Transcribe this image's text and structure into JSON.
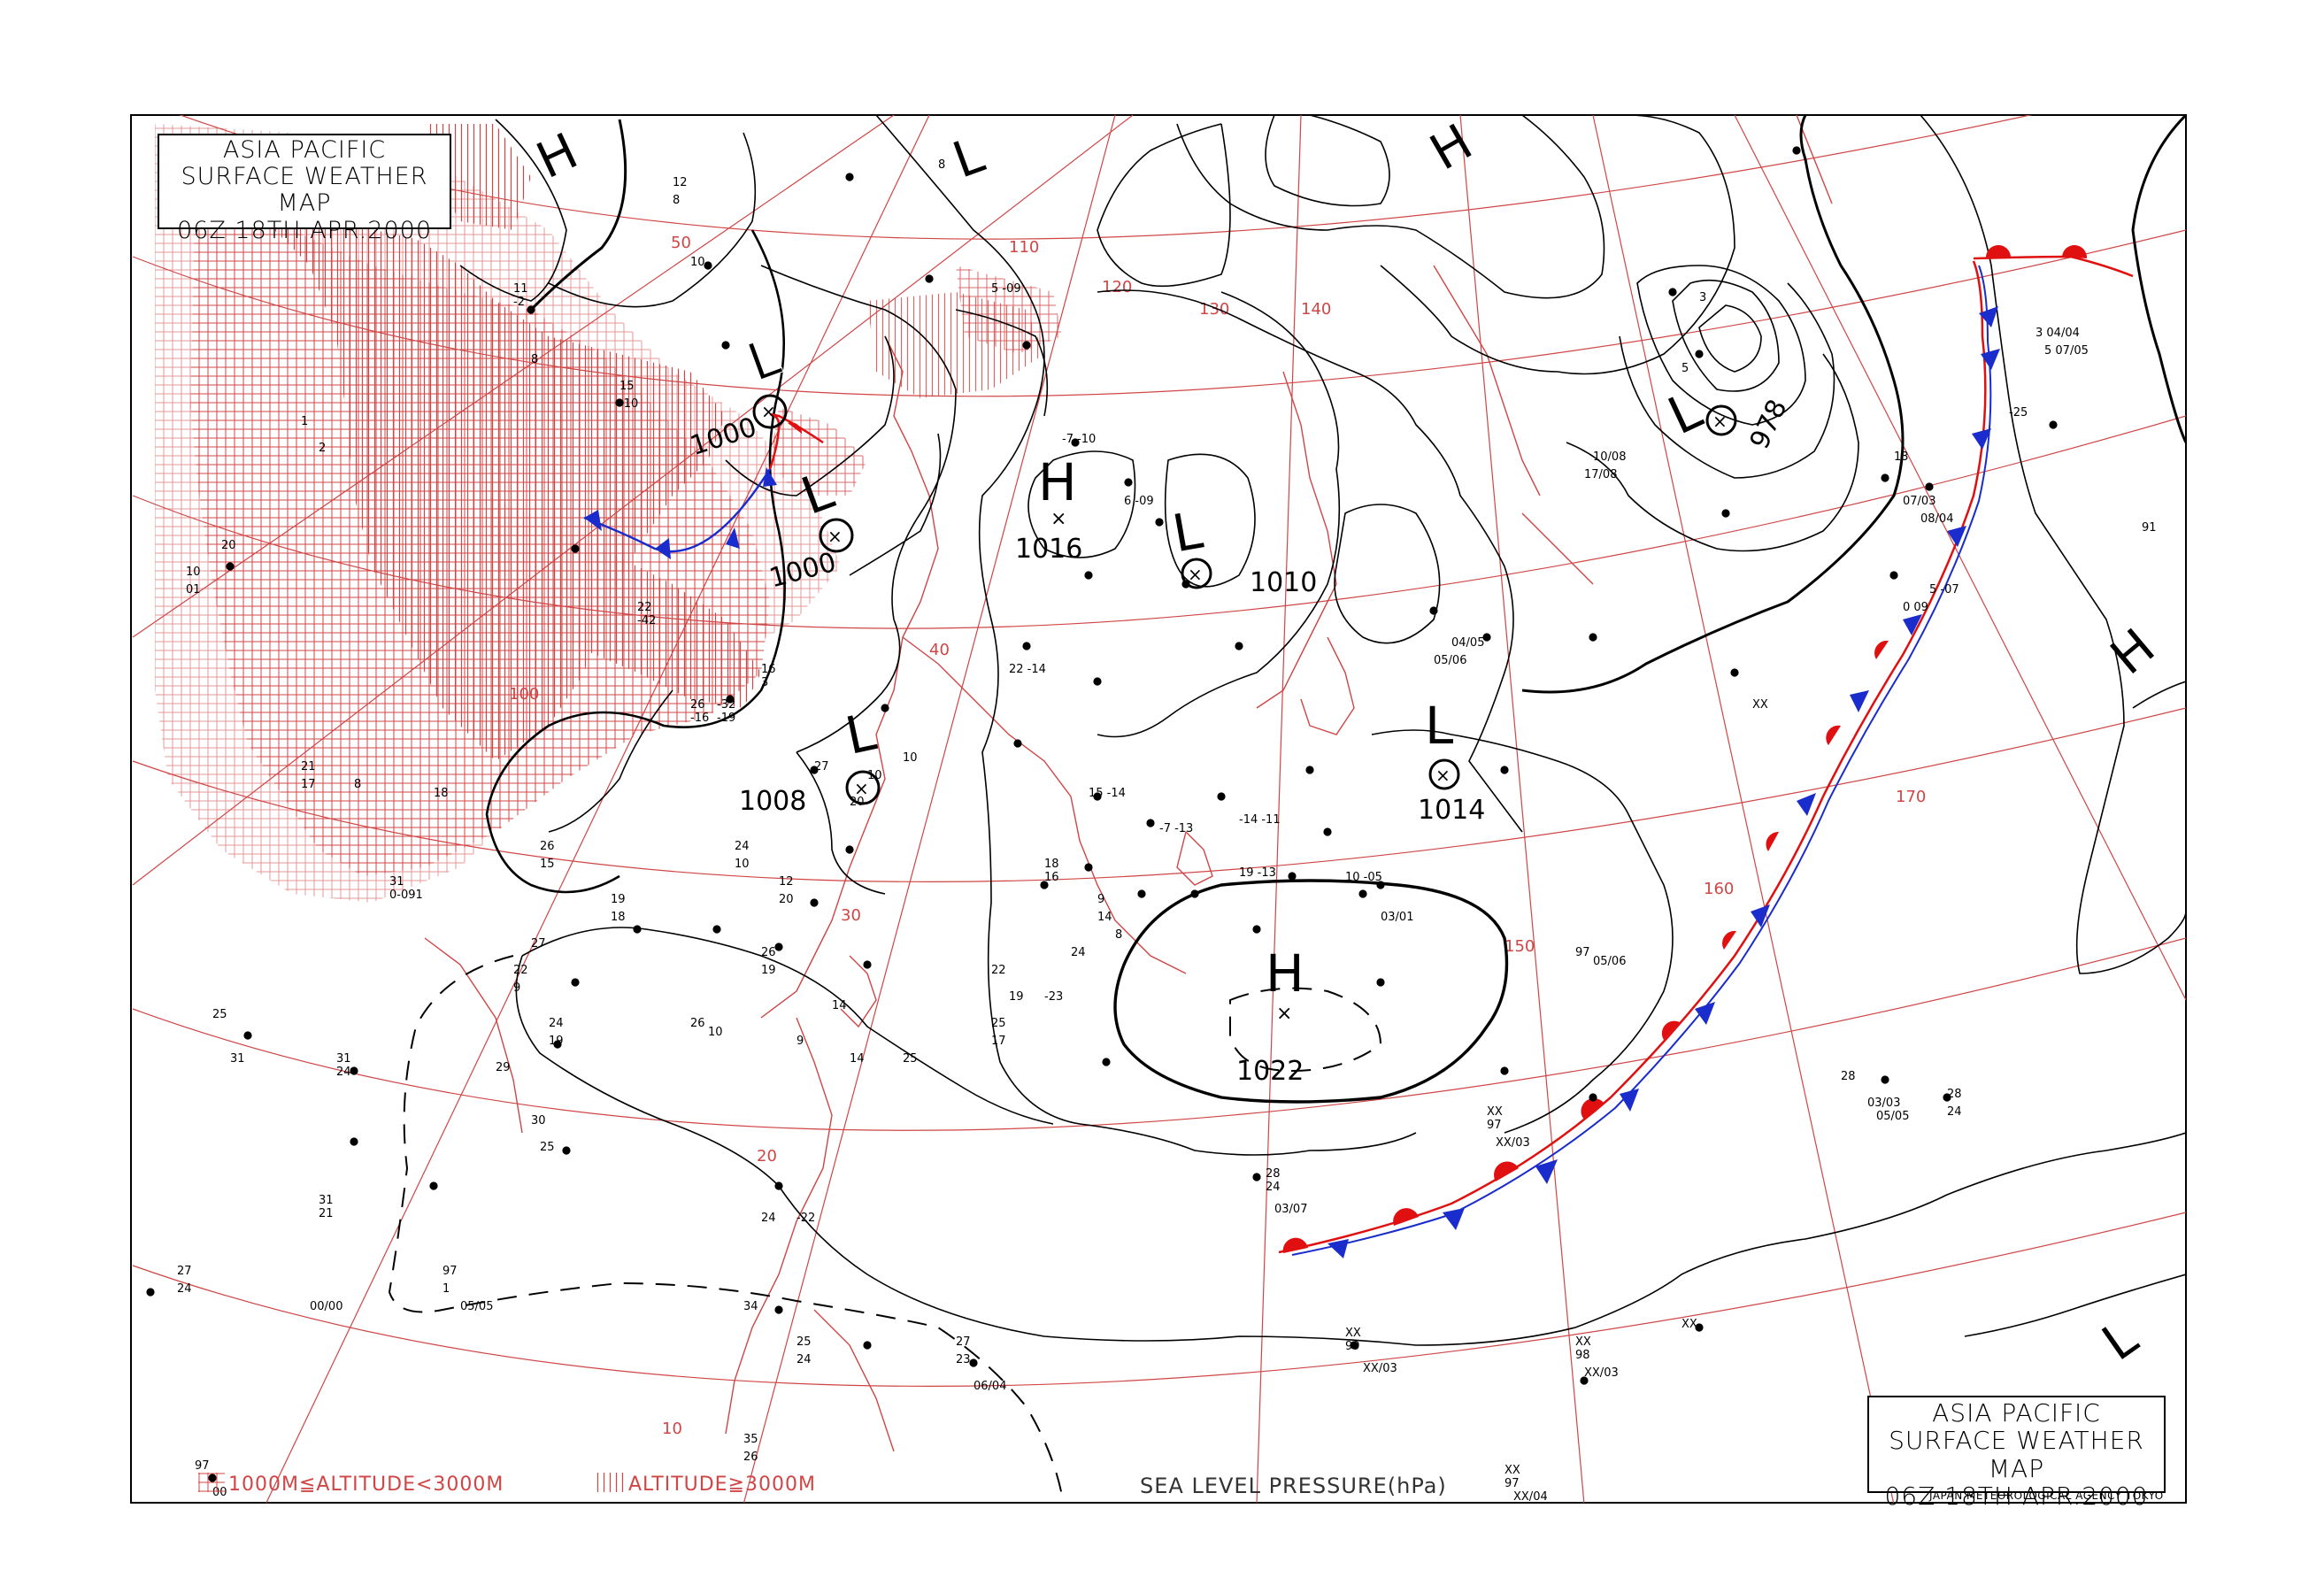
{
  "title": {
    "line1": "ASIA PACIFIC",
    "line2": "SURFACE WEATHER MAP",
    "line3": "06Z 18TH APR.2000"
  },
  "legend": {
    "mid_altitude": "1000M≦ALTITUDE<3000M",
    "high_altitude": "ALTITUDE≧3000M"
  },
  "caption": "SEA LEVEL PRESSURE(hPa)",
  "agency": "JAPAN METEOROLOGICAL AGENCY TOKYO",
  "colors": {
    "isobar": "#000000",
    "grid": "#d04545",
    "coast": "#d04545",
    "cold_front": "#1a2ccc",
    "warm_front": "#e01010"
  },
  "systems": [
    {
      "type": "L",
      "pressure": "1000"
    },
    {
      "type": "L",
      "pressure": "1000"
    },
    {
      "type": "H",
      "pressure": "1016"
    },
    {
      "type": "L",
      "pressure": "1010"
    },
    {
      "type": "L",
      "pressure": "1008"
    },
    {
      "type": "L",
      "pressure": "1014"
    },
    {
      "type": "H",
      "pressure": "1022"
    },
    {
      "type": "L",
      "pressure": "978"
    },
    {
      "type": "H",
      "pressure": ""
    },
    {
      "type": "H",
      "pressure": ""
    },
    {
      "type": "L",
      "pressure": ""
    },
    {
      "type": "H",
      "pressure": ""
    }
  ],
  "grid_labels": {
    "latitudes": [
      "50",
      "40",
      "30",
      "20",
      "10"
    ],
    "longitudes": [
      "100",
      "110",
      "120",
      "130",
      "140",
      "150",
      "160",
      "170"
    ]
  }
}
